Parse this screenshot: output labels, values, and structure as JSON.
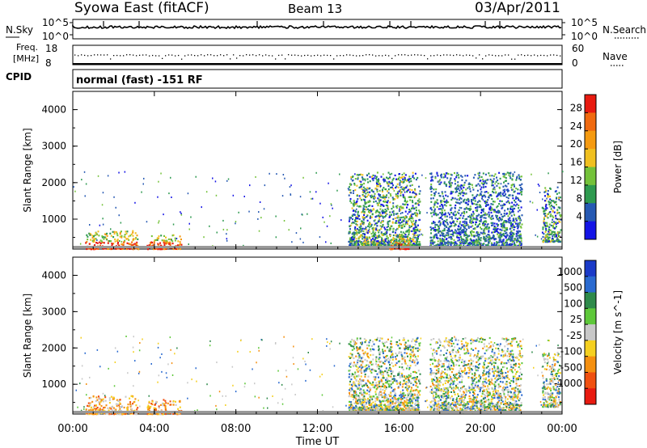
{
  "header": {
    "title_left": "Syowa East (fitACF)",
    "title_mid": "Beam 13",
    "title_right": "03/Apr/2011"
  },
  "top_panels": {
    "nsky_label": "N.Sky",
    "nsky_max": "10^5",
    "nsky_min": "10^0",
    "nsearch_label": "N.Search",
    "nsearch_max": "10^5",
    "nsearch_min": "10^0",
    "freq_label_1": "Freq.",
    "freq_label_2": "[MHz]",
    "freq_max": "18",
    "freq_min": "8",
    "nave_label": "Nave",
    "nave_max": "60",
    "nave_min": "0",
    "cpid_label": "CPID",
    "cpid_text": "normal (fast) -151 RF"
  },
  "chart_data": [
    {
      "type": "heatmap",
      "name": "power",
      "xlabel": "",
      "ylabel": "Slant Range [km]",
      "xlim": [
        0,
        24
      ],
      "ylim": [
        180,
        4500
      ],
      "y_ticks": [
        "1000",
        "2000",
        "3000",
        "4000"
      ],
      "colorbar": {
        "label": "Power [dB]",
        "ticks": [
          "4",
          "8",
          "12",
          "16",
          "20",
          "24",
          "28"
        ],
        "colors": [
          "#1414e6",
          "#2659b3",
          "#2e9a4f",
          "#74c23a",
          "#f0c020",
          "#f59a10",
          "#f06a10",
          "#e81a10"
        ]
      },
      "echo_regions": [
        {
          "t_start": 0.6,
          "t_end": 3.2,
          "r_start": 200,
          "r_end": 700,
          "level": "high"
        },
        {
          "t_start": 3.6,
          "t_end": 5.3,
          "r_start": 200,
          "r_end": 600,
          "level": "high"
        },
        {
          "t_start": 13.5,
          "t_end": 17.0,
          "r_start": 300,
          "r_end": 2300,
          "level": "mixed"
        },
        {
          "t_start": 15.5,
          "t_end": 16.5,
          "r_start": 200,
          "r_end": 600,
          "level": "high"
        },
        {
          "t_start": 17.5,
          "t_end": 22.0,
          "r_start": 250,
          "r_end": 2300,
          "level": "low"
        },
        {
          "t_start": 23.0,
          "t_end": 23.9,
          "r_start": 400,
          "r_end": 1900,
          "level": "mixed"
        }
      ]
    },
    {
      "type": "heatmap",
      "name": "velocity",
      "xlabel": "Time UT",
      "ylabel": "Slant Range [km]",
      "xlim": [
        0,
        24
      ],
      "ylim": [
        180,
        4500
      ],
      "x_ticks": [
        "00:00",
        "04:00",
        "08:00",
        "12:00",
        "16:00",
        "20:00",
        "00:00"
      ],
      "y_ticks": [
        "1000",
        "2000",
        "3000",
        "4000"
      ],
      "colorbar": {
        "label": "Velocity [m s^-1]",
        "ticks": [
          "1000",
          "500",
          "100",
          "25",
          "-25",
          "-100",
          "-500",
          "-1000"
        ],
        "colors": [
          "#1a3ac8",
          "#2a6ad0",
          "#2e8a4a",
          "#5ec83a",
          "#c8c8c8",
          "#f5d020",
          "#f59010",
          "#f05010",
          "#e81a10"
        ]
      },
      "echo_regions": [
        {
          "t_start": 0.6,
          "t_end": 3.2,
          "r_start": 200,
          "r_end": 700,
          "level": "negative"
        },
        {
          "t_start": 3.6,
          "t_end": 5.3,
          "r_start": 200,
          "r_end": 600,
          "level": "negative"
        },
        {
          "t_start": 13.5,
          "t_end": 17.0,
          "r_start": 300,
          "r_end": 2300,
          "level": "mixed"
        },
        {
          "t_start": 17.5,
          "t_end": 22.0,
          "r_start": 250,
          "r_end": 2300,
          "level": "mixed"
        },
        {
          "t_start": 23.0,
          "t_end": 23.9,
          "r_start": 400,
          "r_end": 1900,
          "level": "mixed"
        }
      ]
    }
  ]
}
